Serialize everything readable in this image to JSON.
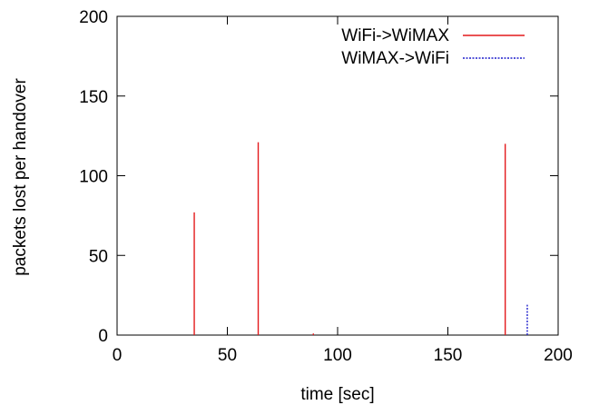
{
  "chart_data": {
    "type": "line",
    "title": "",
    "xlabel": "time [sec]",
    "ylabel": "packets lost per handover",
    "xlim": [
      0,
      200
    ],
    "ylim": [
      0,
      200
    ],
    "x_ticks": [
      0,
      50,
      100,
      150,
      200
    ],
    "y_ticks": [
      0,
      50,
      100,
      150,
      200
    ],
    "grid": false,
    "legend_position": "top-right",
    "series": [
      {
        "name": "WiFi->WiMAX",
        "color": "#e41a1c",
        "style": "solid",
        "impulses": [
          {
            "x": 35,
            "y": 77
          },
          {
            "x": 64,
            "y": 121
          },
          {
            "x": 89,
            "y": 1
          },
          {
            "x": 176,
            "y": 120
          }
        ]
      },
      {
        "name": "WiMAX->WiFi",
        "color": "#1f1fcc",
        "style": "dashed",
        "impulses": [
          {
            "x": 186,
            "y": 19
          }
        ]
      }
    ]
  }
}
